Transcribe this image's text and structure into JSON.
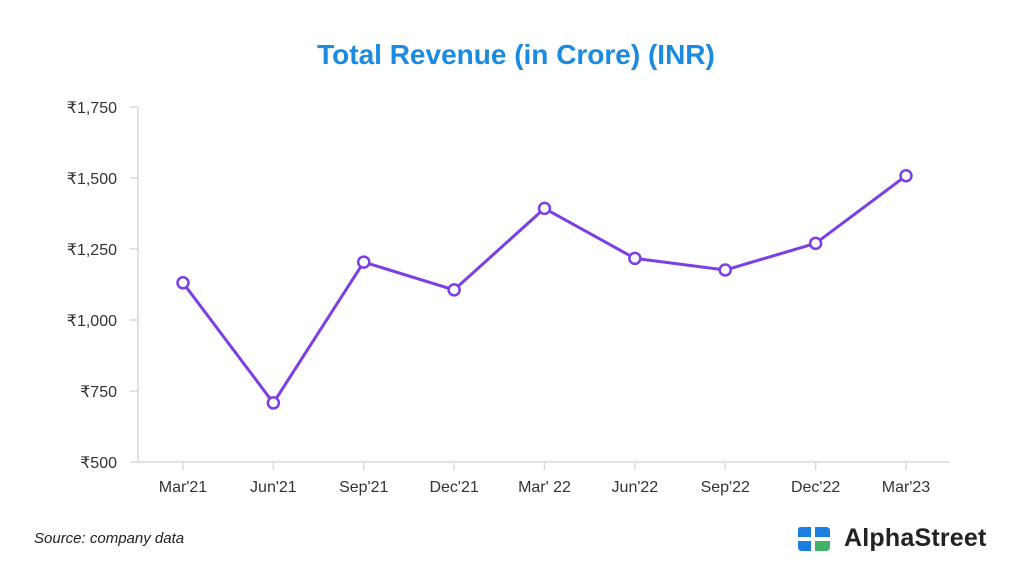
{
  "chart_data": {
    "type": "line",
    "title": "Total Revenue (in Crore) (INR)",
    "xlabel": "",
    "ylabel": "",
    "categories": [
      "Mar'21",
      "Jun'21",
      "Sep'21",
      "Dec'21",
      "Mar' 22",
      "Jun'22",
      "Sep'22",
      "Dec'22",
      "Mar'23"
    ],
    "series": [
      {
        "name": "Total Revenue",
        "values": [
          1131,
          708,
          1204,
          1106,
          1393,
          1217,
          1176,
          1270,
          1508
        ]
      }
    ],
    "ylim": [
      500,
      1750
    ],
    "yticks": [
      500,
      750,
      1000,
      1250,
      1500,
      1750
    ],
    "ytick_labels": [
      "₹500",
      "₹750",
      "₹1,000",
      "₹1,250",
      "₹1,500",
      "₹1,750"
    ],
    "grid": false,
    "legend": "none",
    "colors": {
      "line": "#7b3fe4",
      "title": "#1a8be0",
      "axis": "#d9d9d9"
    }
  },
  "footer": {
    "source": "Source: company data",
    "brand": "AlphaStreet"
  }
}
